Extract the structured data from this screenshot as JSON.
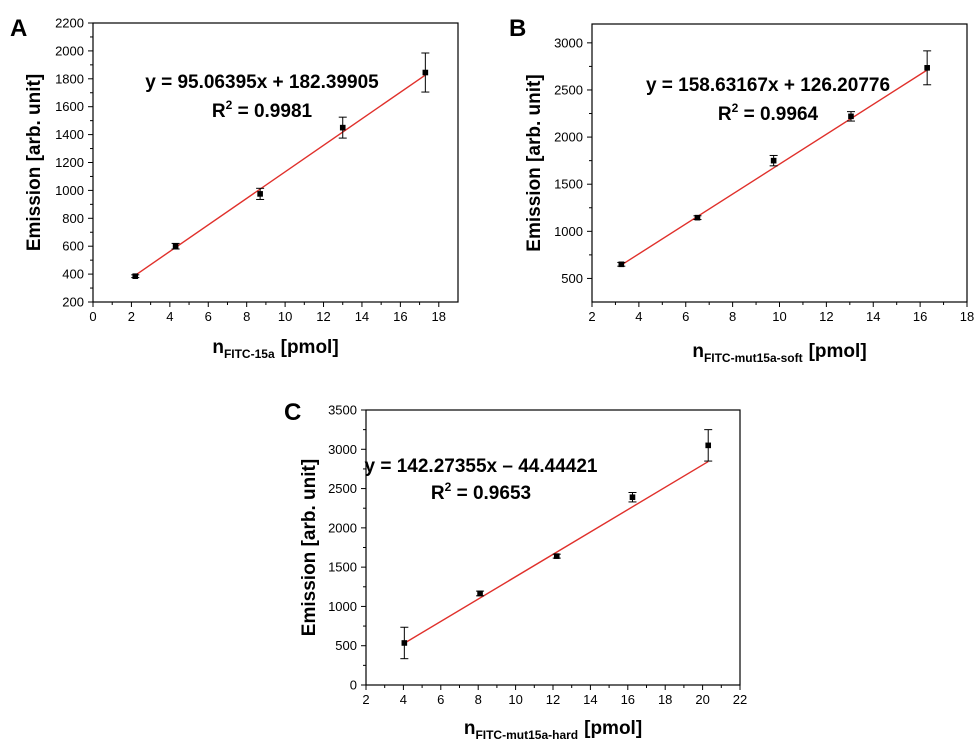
{
  "chart_data": [
    {
      "panel": "A",
      "type": "scatter",
      "xlabel_main": "n",
      "xlabel_sub": "FITC-15a",
      "xlabel_unit": "[pmol]",
      "ylabel": "Emission [arb. unit]",
      "equation": "y = 95.06395x + 182.39905",
      "r2_label": "R",
      "r2_sup": "2",
      "r2_value": " = 0.9981",
      "xlim": [
        0,
        19
      ],
      "ylim": [
        200,
        2200
      ],
      "xticks": [
        0,
        2,
        4,
        6,
        8,
        10,
        12,
        14,
        16,
        18
      ],
      "yticks": [
        200,
        400,
        600,
        800,
        1000,
        1200,
        1400,
        1600,
        1800,
        2000,
        2200
      ],
      "fit_x": [
        2.2,
        17.3
      ],
      "fit": {
        "slope": 95.06395,
        "intercept": 182.39905
      },
      "points": [
        {
          "x": 2.2,
          "y": 385,
          "err": 10
        },
        {
          "x": 4.3,
          "y": 600,
          "err": 20
        },
        {
          "x": 8.7,
          "y": 975,
          "err": 40
        },
        {
          "x": 13.0,
          "y": 1450,
          "err": 75
        },
        {
          "x": 17.3,
          "y": 1845,
          "err": 140
        }
      ],
      "line_color": "#e0302b",
      "marker_color": "#000000"
    },
    {
      "panel": "B",
      "type": "scatter",
      "xlabel_main": "n",
      "xlabel_sub": "FITC-mut15a-soft",
      "xlabel_unit": "[pmol]",
      "ylabel": "Emission [arb. unit]",
      "equation": "y = 158.63167x + 126.20776",
      "r2_label": "R",
      "r2_sup": "2",
      "r2_value": " = 0.9964",
      "xlim": [
        2,
        18
      ],
      "ylim": [
        250,
        3200
      ],
      "xticks": [
        2,
        4,
        6,
        8,
        10,
        12,
        14,
        16,
        18
      ],
      "yticks": [
        500,
        1000,
        1500,
        2000,
        2500,
        3000
      ],
      "fit_x": [
        3.25,
        16.3
      ],
      "fit": {
        "slope": 158.63167,
        "intercept": 126.20776
      },
      "points": [
        {
          "x": 3.25,
          "y": 650,
          "err": 20
        },
        {
          "x": 6.5,
          "y": 1145,
          "err": 20
        },
        {
          "x": 9.75,
          "y": 1750,
          "err": 55
        },
        {
          "x": 13.05,
          "y": 2220,
          "err": 50
        },
        {
          "x": 16.3,
          "y": 2735,
          "err": 180
        }
      ],
      "line_color": "#e0302b",
      "marker_color": "#000000"
    },
    {
      "panel": "C",
      "type": "scatter",
      "xlabel_main": "n",
      "xlabel_sub": "FITC-mut15a-hard",
      "xlabel_unit": "[pmol]",
      "ylabel": "Emission [arb. unit]",
      "equation": "y = 142.27355x – 44.44421",
      "r2_label": "R",
      "r2_sup": "2",
      "r2_value": " = 0.9653",
      "xlim": [
        2,
        22
      ],
      "ylim": [
        0,
        3500
      ],
      "xticks": [
        2,
        4,
        6,
        8,
        10,
        12,
        14,
        16,
        18,
        20,
        22
      ],
      "yticks": [
        0,
        500,
        1000,
        1500,
        2000,
        2500,
        3000,
        3500
      ],
      "fit_x": [
        4.05,
        20.3
      ],
      "fit": {
        "slope": 142.27355,
        "intercept": -44.44421
      },
      "points": [
        {
          "x": 4.05,
          "y": 535,
          "err": 200
        },
        {
          "x": 8.1,
          "y": 1165,
          "err": 30
        },
        {
          "x": 12.2,
          "y": 1640,
          "err": 25
        },
        {
          "x": 16.25,
          "y": 2390,
          "err": 60
        },
        {
          "x": 20.3,
          "y": 3050,
          "err": 200
        }
      ],
      "line_color": "#e0302b",
      "marker_color": "#000000"
    }
  ]
}
